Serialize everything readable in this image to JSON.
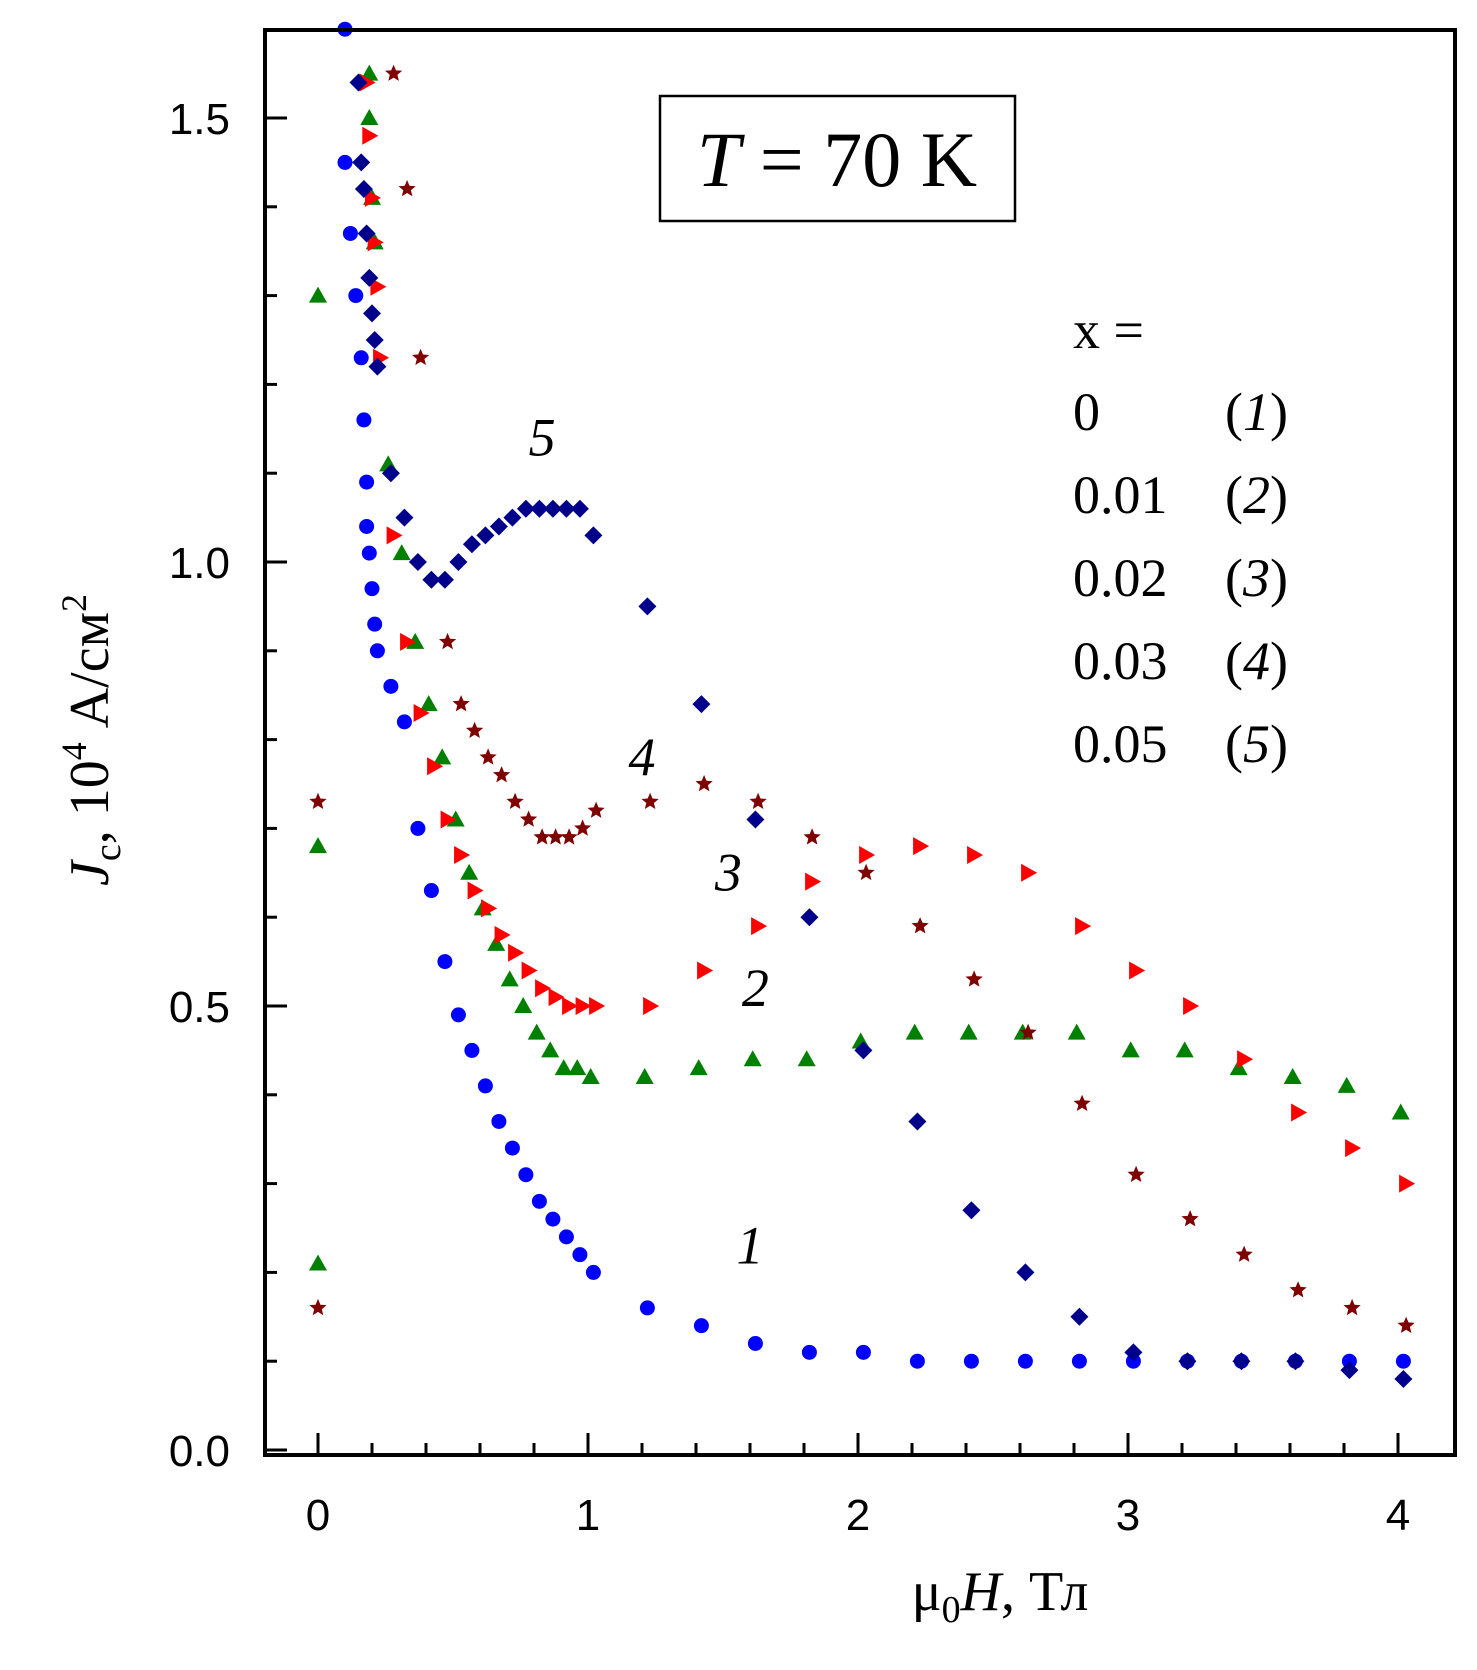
{
  "chart_data": {
    "type": "scatter",
    "title": "",
    "annotation": {
      "var": "T",
      "eq": " = 70 K"
    },
    "xlabel": {
      "mu": "μ",
      "sub": "0",
      "var": "H",
      "unit": ", Тл"
    },
    "ylabel": {
      "var": "J",
      "sub": "c",
      "mid": ", 10",
      "sup": "4",
      "unit": " А/см",
      "sup2": "2"
    },
    "xlim": [
      -0.2,
      4.2
    ],
    "ylim": [
      0.0,
      1.6
    ],
    "x_ticks": [
      0,
      1,
      2,
      3,
      4
    ],
    "x_tick_labels": [
      "0",
      "1",
      "2",
      "3",
      "4"
    ],
    "y_ticks": [
      0.0,
      0.5,
      1.0,
      1.5
    ],
    "y_tick_labels": [
      "0.0",
      "0.5",
      "1.0",
      "1.5"
    ],
    "legend": {
      "header": "x =",
      "placement": "right",
      "entries": [
        {
          "value": "0",
          "label": "1"
        },
        {
          "value": "0.01",
          "label": "2"
        },
        {
          "value": "0.02",
          "label": "3"
        },
        {
          "value": "0.03",
          "label": "4"
        },
        {
          "value": "0.05",
          "label": "5"
        }
      ]
    },
    "series": [
      {
        "id": "1",
        "marker": "circle",
        "color": "#0000ff",
        "x": [
          0.1,
          0.1,
          0.12,
          0.14,
          0.16,
          0.17,
          0.18,
          0.18,
          0.19,
          0.2,
          0.21,
          0.22,
          0.27,
          0.32,
          0.37,
          0.42,
          0.47,
          0.52,
          0.57,
          0.62,
          0.67,
          0.72,
          0.77,
          0.82,
          0.87,
          0.92,
          0.97,
          1.02,
          1.22,
          1.42,
          1.62,
          1.82,
          2.02,
          2.22,
          2.42,
          2.62,
          2.82,
          3.02,
          3.22,
          3.42,
          3.62,
          3.82,
          4.02
        ],
        "y": [
          1.6,
          1.45,
          1.37,
          1.3,
          1.23,
          1.16,
          1.09,
          1.04,
          1.01,
          0.97,
          0.93,
          0.9,
          0.86,
          0.82,
          0.7,
          0.63,
          0.55,
          0.49,
          0.45,
          0.41,
          0.37,
          0.34,
          0.31,
          0.28,
          0.26,
          0.24,
          0.22,
          0.2,
          0.16,
          0.14,
          0.12,
          0.11,
          0.11,
          0.1,
          0.1,
          0.1,
          0.1,
          0.1,
          0.1,
          0.1,
          0.1,
          0.1,
          0.1
        ]
      },
      {
        "id": "2",
        "marker": "triangle",
        "color": "#008000",
        "x": [
          0,
          0,
          0.0,
          0.19,
          0.19,
          0.2,
          0.21,
          0.26,
          0.31,
          0.36,
          0.41,
          0.46,
          0.51,
          0.56,
          0.61,
          0.66,
          0.71,
          0.76,
          0.81,
          0.86,
          0.91,
          0.96,
          1.01,
          1.21,
          1.41,
          1.61,
          1.81,
          2.01,
          2.21,
          2.41,
          2.61,
          2.81,
          3.01,
          3.21,
          3.41,
          3.61,
          3.81,
          4.01
        ],
        "y": [
          0.21,
          0.68,
          1.3,
          1.55,
          1.5,
          1.41,
          1.36,
          1.11,
          1.01,
          0.91,
          0.84,
          0.78,
          0.71,
          0.65,
          0.61,
          0.57,
          0.53,
          0.5,
          0.47,
          0.45,
          0.43,
          0.43,
          0.42,
          0.42,
          0.43,
          0.44,
          0.44,
          0.46,
          0.47,
          0.47,
          0.47,
          0.47,
          0.45,
          0.45,
          0.43,
          0.42,
          0.41,
          0.38
        ]
      },
      {
        "id": "3",
        "marker": "triangle-right",
        "color": "#ff0000",
        "x": [
          0.18,
          0.19,
          0.2,
          0.21,
          0.22,
          0.23,
          0.28,
          0.33,
          0.38,
          0.43,
          0.48,
          0.53,
          0.58,
          0.63,
          0.68,
          0.73,
          0.78,
          0.83,
          0.88,
          0.93,
          0.98,
          1.03,
          1.23,
          1.43,
          1.63,
          1.83,
          2.03,
          2.23,
          2.43,
          2.63,
          2.83,
          3.03,
          3.23,
          3.43,
          3.63,
          3.83,
          4.03
        ],
        "y": [
          1.54,
          1.48,
          1.41,
          1.36,
          1.31,
          1.23,
          1.03,
          0.91,
          0.83,
          0.77,
          0.71,
          0.67,
          0.63,
          0.61,
          0.58,
          0.56,
          0.54,
          0.52,
          0.51,
          0.5,
          0.5,
          0.5,
          0.5,
          0.54,
          0.59,
          0.64,
          0.67,
          0.68,
          0.67,
          0.65,
          0.59,
          0.54,
          0.5,
          0.44,
          0.38,
          0.34,
          0.3
        ]
      },
      {
        "id": "4",
        "marker": "star",
        "color": "#7f0000",
        "x": [
          0,
          0,
          0.28,
          0.33,
          0.38,
          0.48,
          0.53,
          0.58,
          0.63,
          0.68,
          0.73,
          0.78,
          0.83,
          0.88,
          0.93,
          0.98,
          1.03,
          1.23,
          1.43,
          1.63,
          1.83,
          2.03,
          2.23,
          2.43,
          2.63,
          2.83,
          3.03,
          3.23,
          3.43,
          3.63,
          3.83,
          4.03
        ],
        "y": [
          0.16,
          0.73,
          1.55,
          1.42,
          1.23,
          0.91,
          0.84,
          0.81,
          0.78,
          0.76,
          0.73,
          0.71,
          0.69,
          0.69,
          0.69,
          0.7,
          0.72,
          0.73,
          0.75,
          0.73,
          0.69,
          0.65,
          0.59,
          0.53,
          0.47,
          0.39,
          0.31,
          0.26,
          0.22,
          0.18,
          0.16,
          0.14
        ]
      },
      {
        "id": "5",
        "marker": "diamond",
        "color": "#00008b",
        "x": [
          0.15,
          0.16,
          0.17,
          0.18,
          0.19,
          0.2,
          0.21,
          0.22,
          0.27,
          0.32,
          0.37,
          0.42,
          0.47,
          0.52,
          0.57,
          0.62,
          0.67,
          0.72,
          0.77,
          0.82,
          0.87,
          0.92,
          0.97,
          1.02,
          1.22,
          1.42,
          1.62,
          1.82,
          2.02,
          2.22,
          2.42,
          2.62,
          2.82,
          3.02,
          3.22,
          3.42,
          3.62,
          3.82,
          4.02
        ],
        "y": [
          1.54,
          1.45,
          1.42,
          1.37,
          1.32,
          1.28,
          1.25,
          1.22,
          1.1,
          1.05,
          1.0,
          0.98,
          0.98,
          1.0,
          1.02,
          1.03,
          1.04,
          1.05,
          1.06,
          1.06,
          1.06,
          1.06,
          1.06,
          1.03,
          0.95,
          0.84,
          0.71,
          0.6,
          0.45,
          0.37,
          0.27,
          0.2,
          0.15,
          0.11,
          0.1,
          0.1,
          0.1,
          0.09,
          0.08
        ]
      }
    ],
    "curve_labels": [
      {
        "text": "1",
        "x": 1.6,
        "y": 0.21
      },
      {
        "text": "2",
        "x": 1.62,
        "y": 0.5
      },
      {
        "text": "3",
        "x": 1.52,
        "y": 0.63
      },
      {
        "text": "4",
        "x": 1.2,
        "y": 0.76
      },
      {
        "text": "5",
        "x": 0.83,
        "y": 1.12
      }
    ]
  }
}
